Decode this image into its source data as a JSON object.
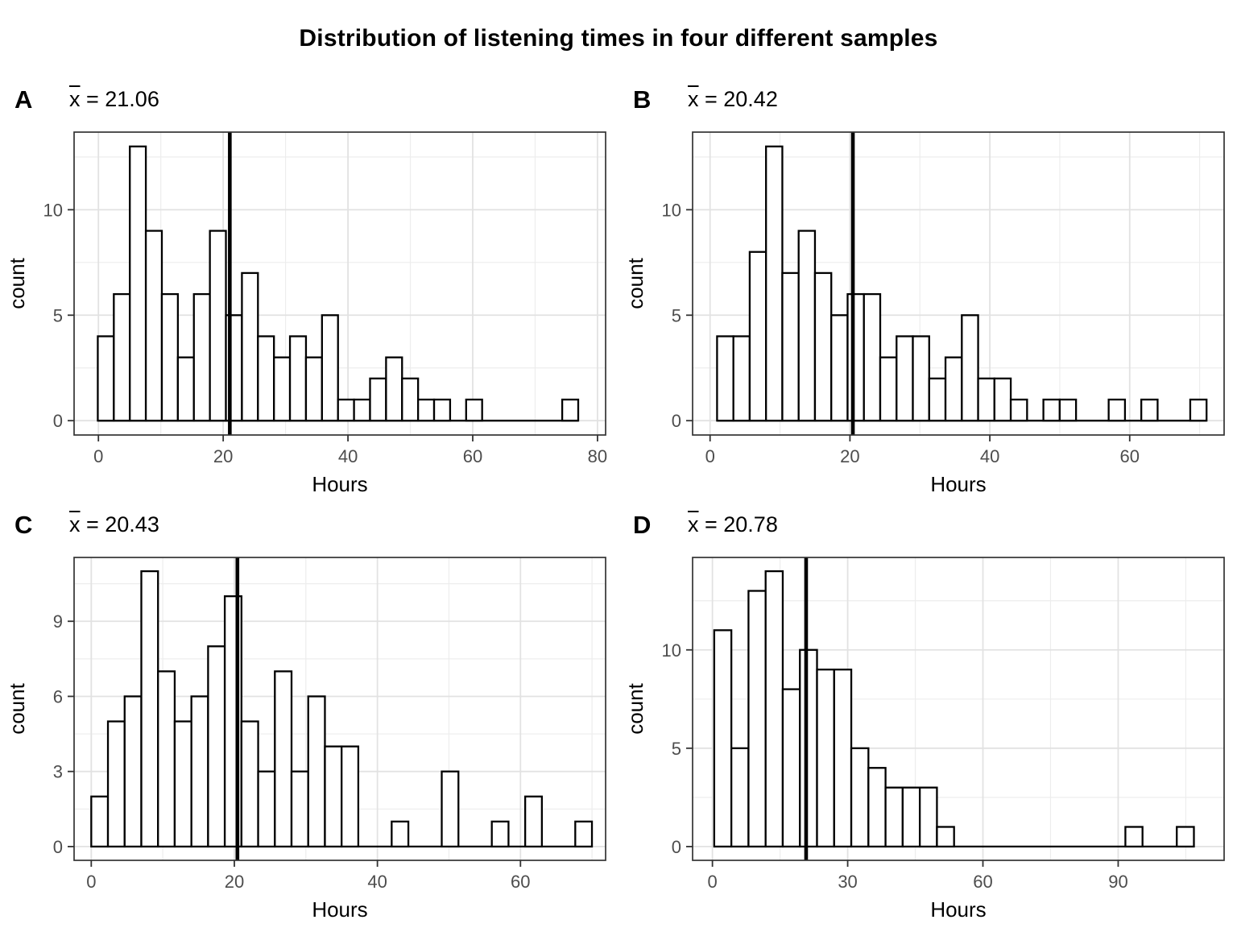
{
  "chart_data": {
    "type": "histogram",
    "title": "Distribution of listening times in four different samples",
    "panels": [
      {
        "facet_label": "A",
        "mean_symbol": "x",
        "mean_rest": " = 21.06",
        "mean_value": 21.06,
        "xlabel": "Hours",
        "ylabel": "count",
        "x_ticks": [
          0,
          20,
          40,
          60,
          80
        ],
        "x_minor": [
          10,
          30,
          50,
          70
        ],
        "y_ticks": [
          0,
          5,
          10
        ],
        "y_minor": [
          2.5,
          7.5,
          12.5
        ],
        "x_domain": [
          -3.9,
          81.3
        ],
        "y_domain": [
          -0.68,
          13.68
        ],
        "bins": {
          "start": -0.1,
          "width": 2.567,
          "counts": [
            4,
            6,
            13,
            9,
            6,
            3,
            6,
            9,
            5,
            7,
            4,
            3,
            4,
            3,
            5,
            1,
            1,
            2,
            3,
            2,
            1,
            1,
            0,
            1,
            0,
            0,
            0,
            0,
            0,
            1
          ]
        }
      },
      {
        "facet_label": "B",
        "mean_symbol": "x",
        "mean_rest": " = 20.42",
        "mean_value": 20.42,
        "xlabel": "Hours",
        "ylabel": "count",
        "x_ticks": [
          0,
          20,
          40,
          60
        ],
        "x_minor": [
          10,
          30,
          50,
          70
        ],
        "y_ticks": [
          0,
          5,
          10
        ],
        "y_minor": [
          2.5,
          7.5,
          12.5
        ],
        "x_domain": [
          -2.5,
          73.5
        ],
        "y_domain": [
          -0.68,
          13.68
        ],
        "bins": {
          "start": 1.0,
          "width": 2.333,
          "counts": [
            4,
            4,
            8,
            13,
            7,
            9,
            7,
            5,
            6,
            6,
            3,
            4,
            4,
            2,
            3,
            5,
            2,
            2,
            1,
            0,
            1,
            1,
            0,
            0,
            1,
            0,
            1,
            0,
            0,
            1
          ]
        }
      },
      {
        "facet_label": "C",
        "mean_symbol": "x",
        "mean_rest": " = 20.43",
        "mean_value": 20.43,
        "xlabel": "Hours",
        "ylabel": "count",
        "x_ticks": [
          0,
          20,
          40,
          60
        ],
        "x_minor": [
          10,
          30,
          50,
          70
        ],
        "y_ticks": [
          0,
          3,
          6,
          9
        ],
        "y_minor": [
          1.5,
          4.5,
          7.5,
          10.5
        ],
        "x_domain": [
          -2.4,
          71.9
        ],
        "y_domain": [
          -0.55,
          11.55
        ],
        "bins": {
          "start": 0.0,
          "width": 2.333,
          "counts": [
            2,
            5,
            6,
            11,
            7,
            5,
            6,
            8,
            10,
            5,
            3,
            7,
            3,
            6,
            4,
            4,
            0,
            0,
            1,
            0,
            0,
            3,
            0,
            0,
            1,
            0,
            2,
            0,
            0,
            1
          ]
        }
      },
      {
        "facet_label": "D",
        "mean_symbol": "x",
        "mean_rest": " = 20.78",
        "mean_value": 20.78,
        "xlabel": "Hours",
        "ylabel": "count",
        "x_ticks": [
          0,
          30,
          60,
          90
        ],
        "x_minor": [
          15,
          45,
          75,
          105
        ],
        "y_ticks": [
          0,
          5,
          10
        ],
        "y_minor": [
          2.5,
          7.5,
          12.5
        ],
        "x_domain": [
          -4.4,
          113.5
        ],
        "y_domain": [
          -0.7,
          14.7
        ],
        "bins": {
          "start": 0.4,
          "width": 3.8,
          "counts": [
            11,
            5,
            13,
            14,
            8,
            10,
            9,
            9,
            5,
            4,
            3,
            3,
            3,
            1,
            0,
            0,
            0,
            0,
            0,
            0,
            0,
            0,
            0,
            0,
            1,
            0,
            0,
            1,
            0,
            0
          ]
        }
      }
    ],
    "style": {
      "bar_fill": "#ffffff",
      "bar_stroke": "#000000",
      "mean_line_color": "#000000",
      "panel_border_color": "#333333",
      "grid_major_color": "#e2e2e2",
      "grid_minor_color": "#ededed",
      "tick_label_color": "#4d4d4d",
      "axis_title_color": "#000000"
    }
  }
}
